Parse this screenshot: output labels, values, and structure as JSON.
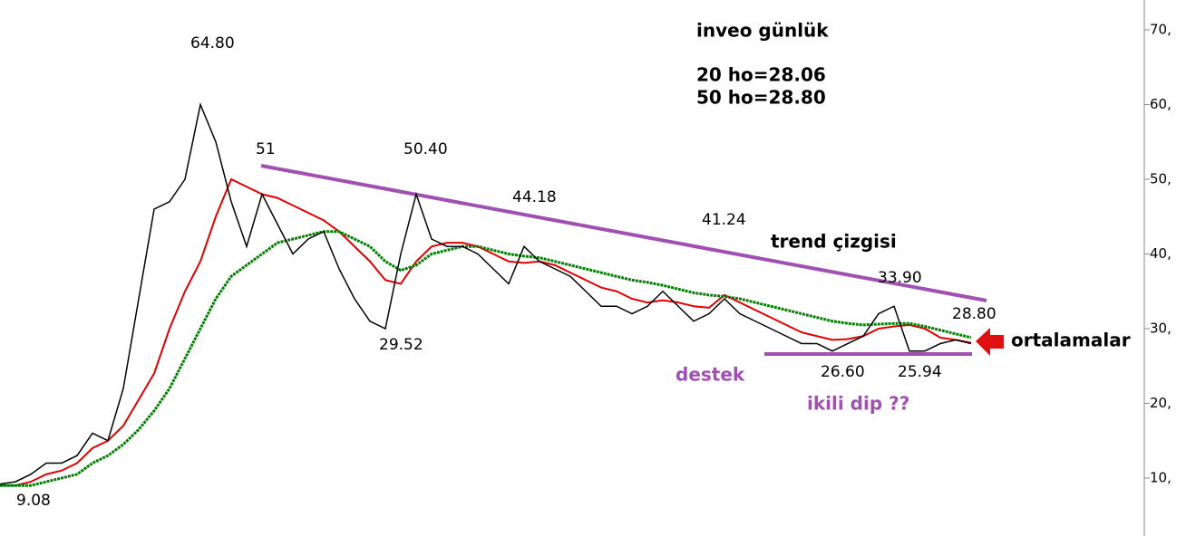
{
  "chart_data": {
    "type": "line",
    "title": "inveo günlük",
    "series": [
      {
        "name": "20 ho=28.06",
        "color": "#e00000",
        "values": [
          9,
          9,
          9.5,
          10.5,
          11,
          12,
          14,
          15,
          17,
          20.5,
          24,
          30,
          35,
          39,
          45,
          50,
          49,
          48,
          47.5,
          46.5,
          45.5,
          44.5,
          43,
          41,
          39,
          36.5,
          36,
          39,
          41,
          41.5,
          41.5,
          41,
          40,
          39,
          38.8,
          39,
          38.5,
          37.5,
          36.5,
          35.5,
          35,
          34,
          33.5,
          33.8,
          33.5,
          33,
          32.8,
          34.5,
          33.5,
          32.5,
          31.5,
          30.5,
          29.5,
          29,
          28.5,
          28.6,
          29,
          30,
          30.3,
          30.5,
          30,
          28.8,
          28.5,
          28.1
        ]
      },
      {
        "name": "50 ho=28.80",
        "color": "#008000",
        "values": [
          9,
          9,
          9,
          9.5,
          10,
          10.5,
          12,
          13,
          14.5,
          16.5,
          19,
          22,
          26,
          30,
          34,
          37,
          38.5,
          40,
          41.5,
          42,
          42.5,
          43,
          43,
          42,
          41,
          39,
          37.8,
          38.5,
          40,
          40.5,
          41,
          41,
          40.5,
          40,
          39.7,
          39.5,
          39,
          38.5,
          38,
          37.5,
          37,
          36.5,
          36.2,
          35.8,
          35.3,
          34.8,
          34.5,
          34.3,
          34,
          33.5,
          33,
          32.5,
          32,
          31.5,
          31,
          30.7,
          30.5,
          30.6,
          30.7,
          30.7,
          30.3,
          29.8,
          29.3,
          28.8
        ]
      },
      {
        "color": "#000000",
        "values": [
          9.2,
          9.5,
          10.5,
          12,
          12,
          13,
          16,
          15,
          22,
          34,
          46,
          47,
          50,
          60,
          55,
          47,
          41,
          48,
          44,
          40,
          42,
          43,
          38,
          34,
          31,
          30,
          40,
          48,
          42,
          41,
          41,
          40,
          38,
          36,
          41,
          39,
          38,
          37,
          35,
          33,
          33,
          32,
          33,
          35,
          33,
          31,
          32,
          34,
          32,
          31,
          30,
          29,
          28,
          28,
          27,
          28,
          29,
          32,
          33,
          27,
          27,
          28,
          28.5,
          28
        ]
      }
    ],
    "annotations": [
      "64.80",
      "51",
      "50.40",
      "44.18",
      "41.24",
      "33.90",
      "28.80",
      "29.52",
      "26.60",
      "25.94",
      "9.08",
      "trend çizgisi",
      "destek",
      "ikili dip ??",
      "ortalamalar"
    ],
    "ylim": [
      2.24,
      74
    ],
    "yticks": [
      {
        "value": 10,
        "label": "10,"
      },
      {
        "value": 20,
        "label": "20,"
      },
      {
        "value": 30,
        "label": "30,"
      },
      {
        "value": 40,
        "label": "40,"
      },
      {
        "value": 50,
        "label": "50,"
      },
      {
        "value": 60,
        "label": "60,"
      },
      {
        "value": 70,
        "label": "70,"
      }
    ]
  }
}
